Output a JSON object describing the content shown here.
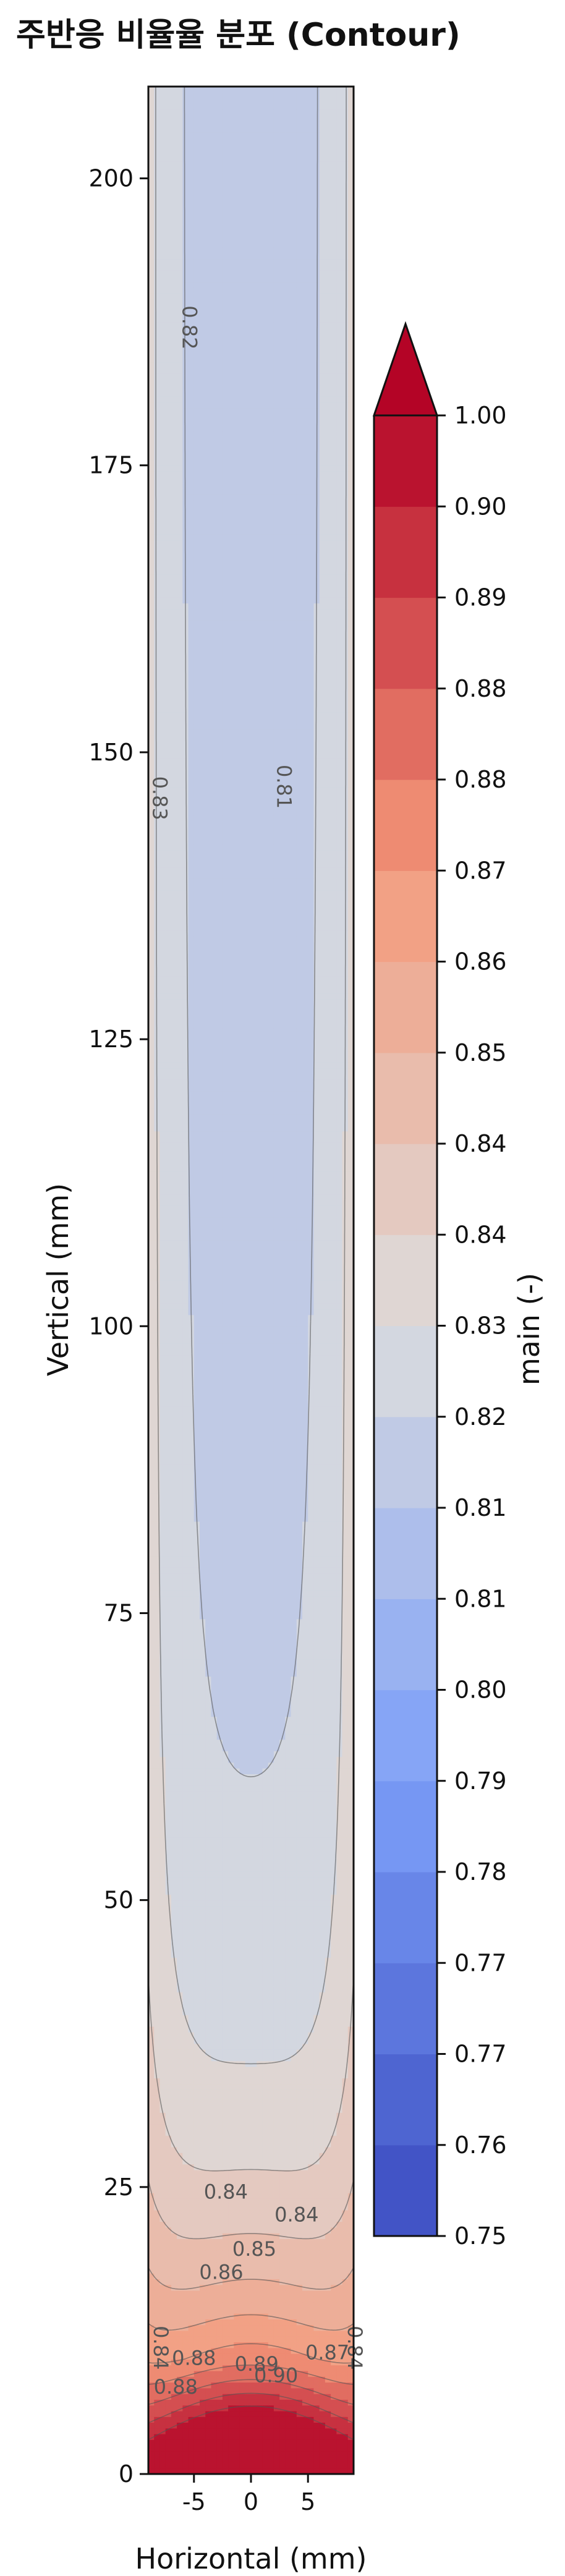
{
  "chart_data": {
    "type": "contour",
    "title": "주반응 비율율 분포 (Contour)",
    "xlabel": "Horizontal (mm)",
    "ylabel": "Vertical (mm)",
    "xlim": [
      -9,
      9
    ],
    "ylim": [
      0,
      208
    ],
    "x_ticks": [
      {
        "value": -5,
        "label": "-5"
      },
      {
        "value": 0,
        "label": "0"
      },
      {
        "value": 5,
        "label": "5"
      }
    ],
    "y_ticks": [
      {
        "value": 0,
        "label": "0"
      },
      {
        "value": 25,
        "label": "25"
      },
      {
        "value": 50,
        "label": "50"
      },
      {
        "value": 75,
        "label": "75"
      },
      {
        "value": 100,
        "label": "100"
      },
      {
        "value": 125,
        "label": "125"
      },
      {
        "value": 150,
        "label": "150"
      },
      {
        "value": 175,
        "label": "175"
      },
      {
        "value": 200,
        "label": "200"
      }
    ],
    "colormap": "coolwarm",
    "colorbar": {
      "label": "main (-)",
      "extend": "max",
      "tick_labels": [
        "0.75",
        "0.76",
        "0.77",
        "0.77",
        "0.78",
        "0.79",
        "0.80",
        "0.81",
        "0.81",
        "0.82",
        "0.83",
        "0.84",
        "0.84",
        "0.85",
        "0.86",
        "0.87",
        "0.88",
        "0.88",
        "0.89",
        "0.90",
        "1.00"
      ]
    },
    "contour_labels": [
      {
        "text": "0.82",
        "x": -6.0,
        "y": 187
      },
      {
        "text": "0.83",
        "x": -8.6,
        "y": 146
      },
      {
        "text": "0.81",
        "x": 2.3,
        "y": 147
      },
      {
        "text": "0.84",
        "x": -2.2,
        "y": 24
      },
      {
        "text": "0.84",
        "x": 4.0,
        "y": 22
      },
      {
        "text": "0.85",
        "x": 0.3,
        "y": 19
      },
      {
        "text": "0.86",
        "x": -2.6,
        "y": 17
      },
      {
        "text": "0.84",
        "x": -8.5,
        "y": 11
      },
      {
        "text": "0.84",
        "x": 8.5,
        "y": 11
      },
      {
        "text": "0.88",
        "x": -5.0,
        "y": 9.5
      },
      {
        "text": "0.89",
        "x": 0.5,
        "y": 9
      },
      {
        "text": "0.90",
        "x": 2.2,
        "y": 8
      },
      {
        "text": "0.88",
        "x": -6.6,
        "y": 7
      },
      {
        "text": "0.87",
        "x": 6.7,
        "y": 10
      }
    ]
  }
}
